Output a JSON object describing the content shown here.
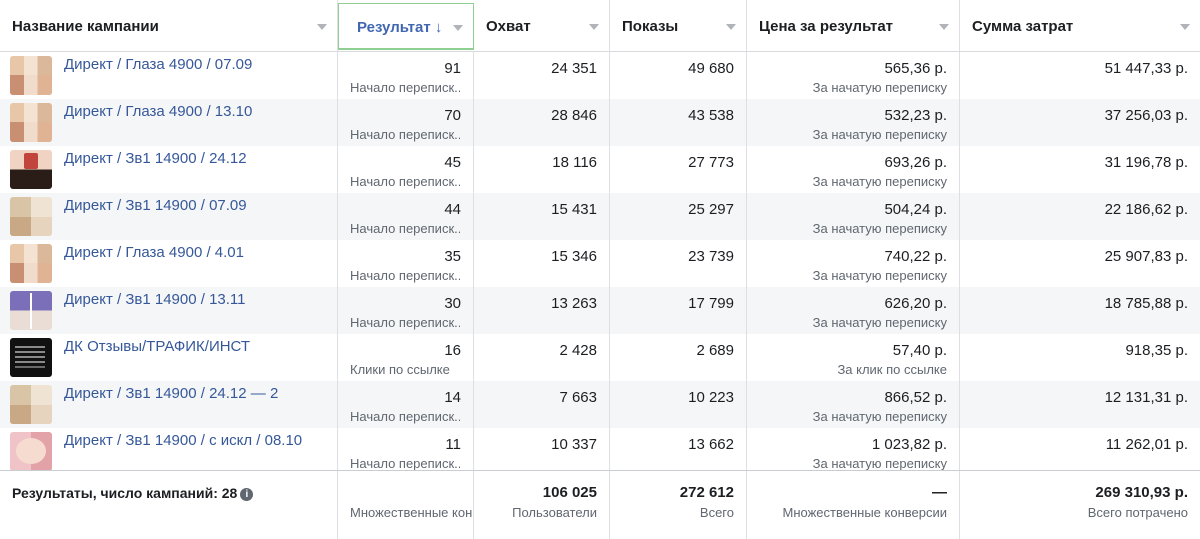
{
  "columns": {
    "name": "Название кампании",
    "result": "Результат",
    "result_sort_arrow": "↓",
    "reach": "Охват",
    "impressions": "Показы",
    "cost": "Цена за результат",
    "spend": "Сумма затрат"
  },
  "rows": [
    {
      "thumb": "beige-collage",
      "name": "Директ / Глаза 4900 / 07.09",
      "result": "91",
      "result_type": "Начало переписк...",
      "reach": "24 351",
      "impressions": "49 680",
      "cost": "565,36 р.",
      "cost_type": "За начатую переписку",
      "spend": "51 447,33 р."
    },
    {
      "thumb": "beige-collage",
      "name": "Директ / Глаза 4900 / 13.10",
      "result": "70",
      "result_type": "Начало переписк...",
      "reach": "28 846",
      "impressions": "43 538",
      "cost": "532,23 р.",
      "cost_type": "За начатую переписку",
      "spend": "37 256,03 р."
    },
    {
      "thumb": "dark-collage",
      "name": "Директ / Зв1 14900 / 24.12",
      "result": "45",
      "result_type": "Начало переписк...",
      "reach": "18 116",
      "impressions": "27 773",
      "cost": "693,26 р.",
      "cost_type": "За начатую переписку",
      "spend": "31 196,78 р."
    },
    {
      "thumb": "blond-collage",
      "name": "Директ / Зв1 14900 / 07.09",
      "result": "44",
      "result_type": "Начало переписк...",
      "reach": "15 431",
      "impressions": "25 297",
      "cost": "504,24 р.",
      "cost_type": "За начатую переписку",
      "spend": "22 186,62 р."
    },
    {
      "thumb": "beige-collage",
      "name": "Директ / Глаза 4900 / 4.01",
      "result": "35",
      "result_type": "Начало переписк...",
      "reach": "15 346",
      "impressions": "23 739",
      "cost": "740,22 р.",
      "cost_type": "За начатую переписку",
      "spend": "25 907,83 р."
    },
    {
      "thumb": "purple-collage",
      "name": "Директ / Зв1 14900 / 13.11",
      "result": "30",
      "result_type": "Начало переписк...",
      "reach": "13 263",
      "impressions": "17 799",
      "cost": "626,20 р.",
      "cost_type": "За начатую переписку",
      "spend": "18 785,88 р."
    },
    {
      "thumb": "black-text",
      "name": "ДК Отзывы/ТРАФИК/ИНСТ",
      "result": "16",
      "result_type": "Клики по ссылке",
      "reach": "2 428",
      "impressions": "2 689",
      "cost": "57,40 р.",
      "cost_type": "За клик по ссылке",
      "spend": "918,35 р."
    },
    {
      "thumb": "blond-collage",
      "name": "Директ / Зв1 14900 / 24.12 — 2",
      "result": "14",
      "result_type": "Начало переписк...",
      "reach": "7 663",
      "impressions": "10 223",
      "cost": "866,52 р.",
      "cost_type": "За начатую переписку",
      "spend": "12 131,31 р."
    },
    {
      "thumb": "pink-collage",
      "name": "Директ / Зв1 14900 / с искл / 08.10",
      "result": "11",
      "result_type": "Начало переписк...",
      "reach": "10 337",
      "impressions": "13 662",
      "cost": "1 023,82 р.",
      "cost_type": "За начатую переписку",
      "spend": "11 262,01 р."
    }
  ],
  "totals": {
    "label": "Результаты, число кампаний: 28",
    "info_icon": "info-icon",
    "result_sub": "Множественные конв",
    "reach": "106 025",
    "reach_sub": "Пользователи",
    "impressions": "272 612",
    "impressions_sub": "Всего",
    "cost": "—",
    "cost_sub": "Множественные конверсии",
    "spend": "269 310,93 р.",
    "spend_sub": "Всего потрачено"
  }
}
